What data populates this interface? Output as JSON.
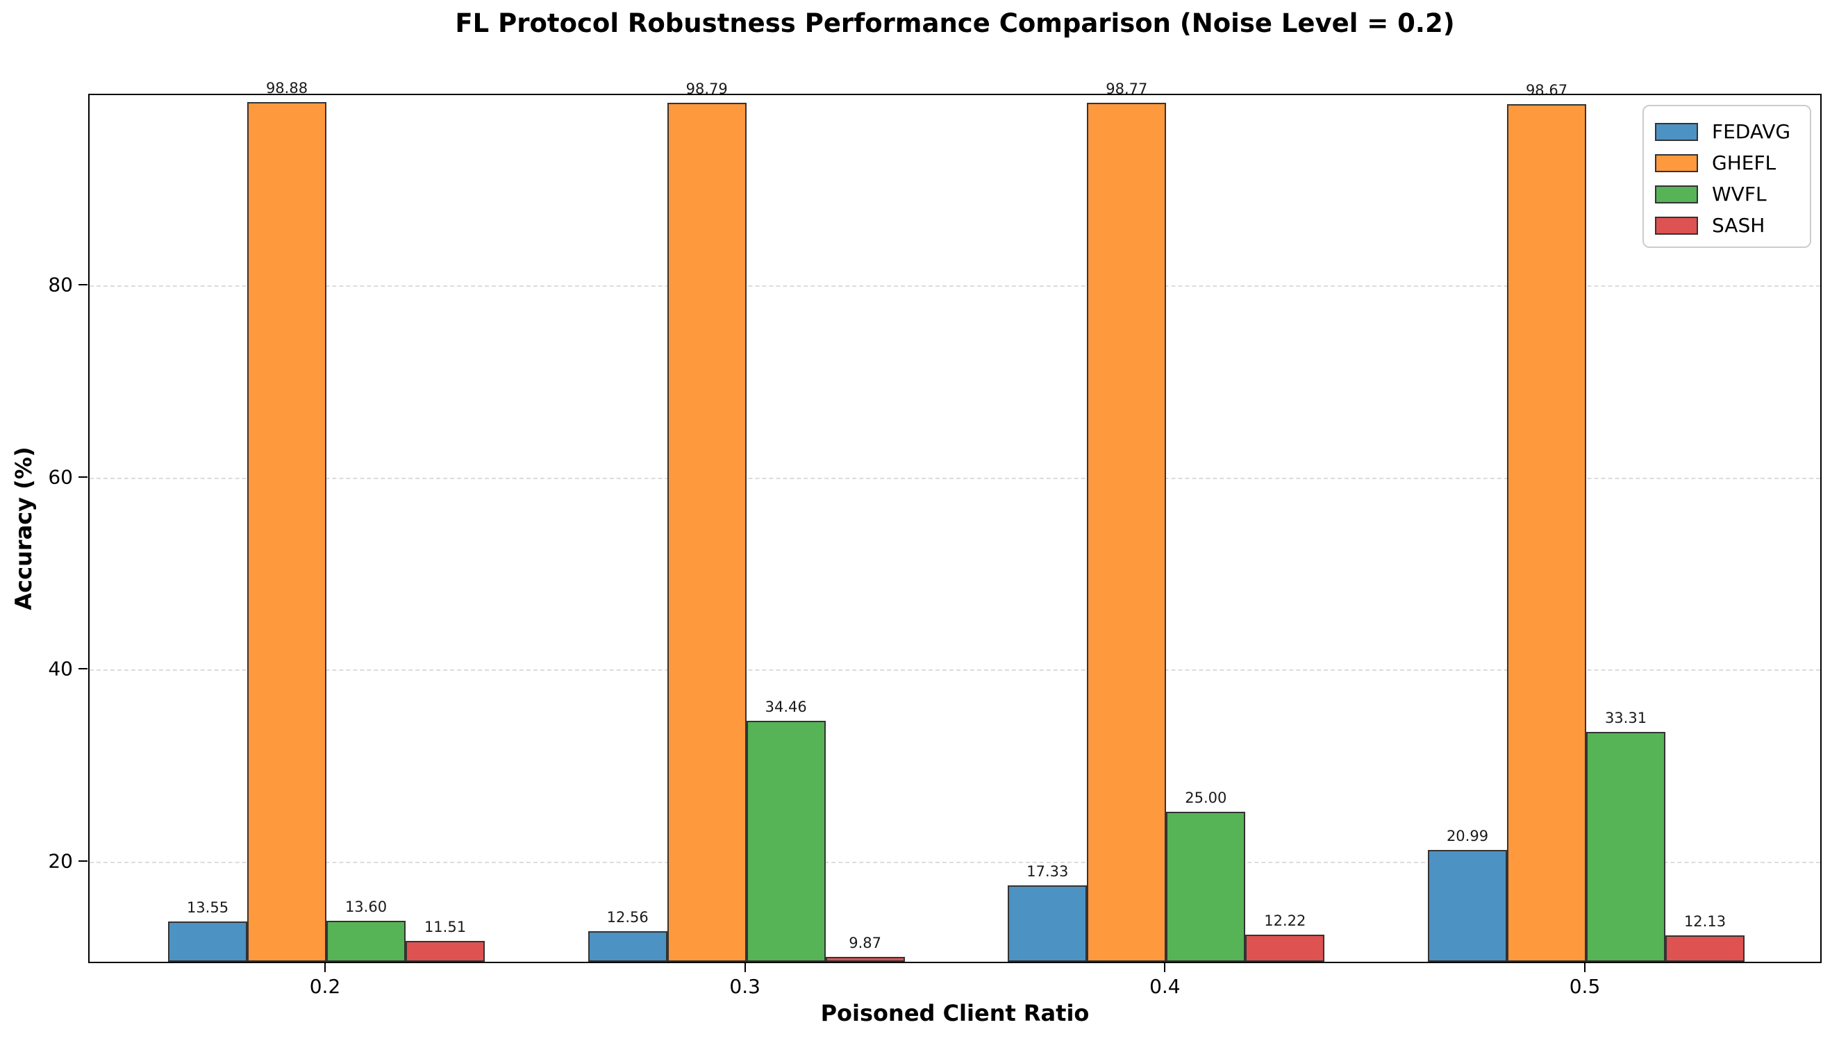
{
  "figure": {
    "title": "FL Protocol Robustness Performance Comparison (Noise Level = 0.2)",
    "xlabel": "Poisoned Client Ratio",
    "ylabel": "Accuracy (%)"
  },
  "chart_data": {
    "type": "bar",
    "title": "FL Protocol Robustness Performance Comparison (Noise Level = 0.2)",
    "xlabel": "Poisoned Client Ratio",
    "ylabel": "Accuracy (%)",
    "categories": [
      "0.2",
      "0.3",
      "0.4",
      "0.5"
    ],
    "series": [
      {
        "name": "FEDAVG",
        "color": "#4C92C3",
        "values": [
          13.55,
          12.56,
          17.33,
          20.99
        ]
      },
      {
        "name": "GHEFL",
        "color": "#FF993E",
        "values": [
          98.88,
          98.79,
          98.77,
          98.67
        ]
      },
      {
        "name": "WVFL",
        "color": "#56B356",
        "values": [
          13.6,
          34.46,
          25.0,
          33.31
        ]
      },
      {
        "name": "SASH",
        "color": "#DE5252",
        "values": [
          11.51,
          9.87,
          12.22,
          12.13
        ]
      }
    ],
    "value_labels": [
      [
        "13.55",
        "12.56",
        "17.33",
        "20.99"
      ],
      [
        "98.88",
        "98.79",
        "98.77",
        "98.67"
      ],
      [
        "13.60",
        "34.46",
        "25.00",
        "33.31"
      ],
      [
        "11.51",
        "9.87",
        "12.22",
        "12.13"
      ]
    ],
    "yticks": [
      20,
      40,
      60,
      80
    ],
    "ylim": [
      9.37,
      99.87
    ],
    "grid": "horizontal-dashed",
    "legend_position": "upper-right",
    "legend_entries": [
      "FEDAVG",
      "GHEFL",
      "WVFL",
      "SASH"
    ],
    "bar_edge_color": "#333333",
    "gridline_color": "#dcdcdc",
    "spine_color": "#000000"
  }
}
